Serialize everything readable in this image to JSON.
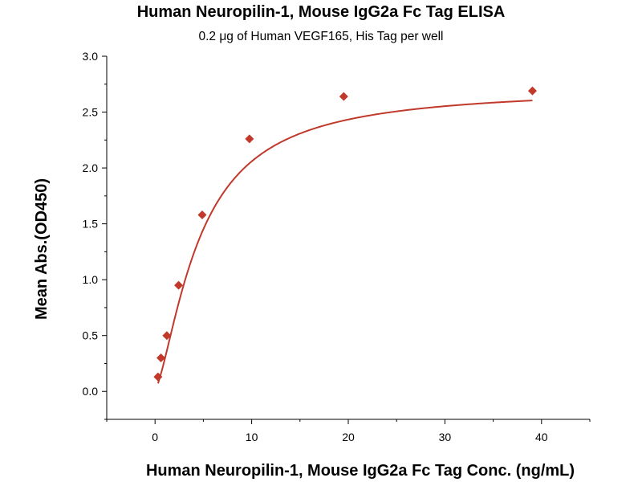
{
  "chart_data": {
    "type": "scatter",
    "title": "Human Neuropilin-1, Mouse IgG2a Fc Tag ELISA",
    "subtitle": "0.2 μg of Human VEGF165, His Tag per well",
    "xlabel": "Human Neuropilin-1, Mouse IgG2a Fc Tag Conc. (ng/mL)",
    "ylabel": "Mean Abs.(OD450)",
    "xlim": [
      -5,
      45
    ],
    "ylim": [
      -0.25,
      3.0
    ],
    "xticks": [
      0,
      10,
      20,
      30,
      40
    ],
    "xtick_labels": [
      "0",
      "10",
      "20",
      "30",
      "40"
    ],
    "yticks": [
      0.0,
      0.5,
      1.0,
      1.5,
      2.0,
      2.5,
      3.0
    ],
    "ytick_labels": [
      "0.0",
      "0.5",
      "1.0",
      "1.5",
      "2.0",
      "2.5",
      "3.0"
    ],
    "grid": false,
    "legend": "none",
    "series": [
      {
        "x": [
          0.305,
          0.61,
          1.22,
          2.44,
          4.88,
          9.77,
          19.53,
          39.06
        ],
        "y": [
          0.13,
          0.3,
          0.5,
          0.95,
          1.58,
          2.26,
          2.64,
          2.69
        ],
        "color": "#c0392b",
        "marker": "diamond",
        "fit": "four-parameter logistic curve"
      }
    ]
  }
}
